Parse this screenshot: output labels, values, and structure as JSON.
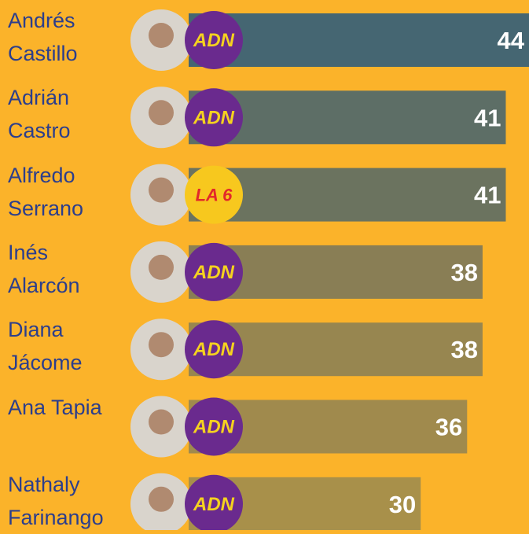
{
  "chart_data": {
    "type": "bar",
    "categories": [
      "Andrés Castillo",
      "Adrián Castro",
      "Alfredo Serrano",
      "Inés Alarcón",
      "Diana Jácome",
      "Ana Tapia",
      "Nathaly Farinango"
    ],
    "values": [
      44,
      41,
      41,
      38,
      38,
      36,
      30
    ],
    "colors": [
      "#456672",
      "#5d6e66",
      "#6b735f",
      "#897e55",
      "#978650",
      "#a08a4d",
      "#a8904a"
    ],
    "parties": [
      "ADN",
      "ADN",
      "LA 6",
      "ADN",
      "ADN",
      "ADN",
      "ADN"
    ]
  }
}
